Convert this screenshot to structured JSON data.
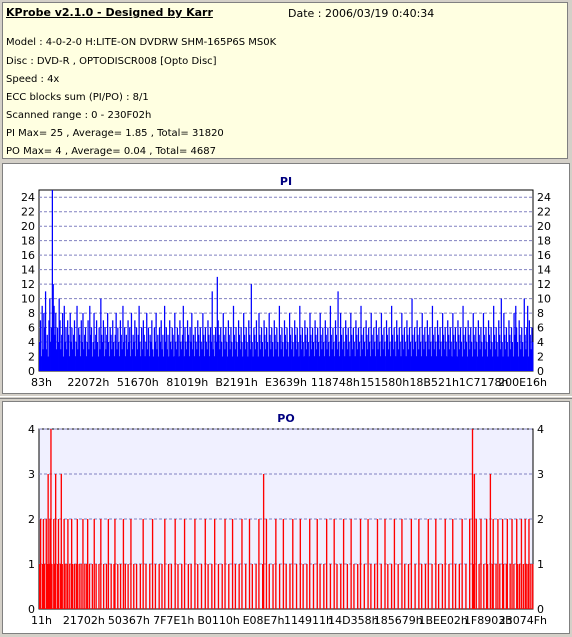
{
  "header": {
    "title": "KProbe v2.1.0 - Designed by Karr",
    "date": "Date : 2006/03/19 0:40:34",
    "lines": [
      "Model : 4-0-2-0 H:LITE-ON DVDRW SHM-165P6S MS0K",
      "Disc : DVD-R , OPTODISCR008 [Opto Disc]",
      "Speed : 4x",
      "ECC blocks sum (PI/PO) : 8/1",
      "Scanned range : 0 - 230F02h",
      "PI Max= 25 , Average= 1.85 , Total= 31820",
      "PO Max= 4 , Average= 0.04 , Total= 4687"
    ]
  },
  "chart_data": [
    {
      "type": "bar",
      "title": "PI",
      "color": "#0000ff",
      "background": "#ffffff",
      "ylim": [
        0,
        25
      ],
      "yticks": [
        0,
        2,
        4,
        6,
        8,
        10,
        12,
        14,
        16,
        18,
        20,
        22,
        24
      ],
      "grid": true,
      "x_tick_labels": [
        "83h",
        "22072h",
        "51670h",
        "81019h",
        "B2191h",
        "E3639h",
        "118748h",
        "151580h",
        "18B521h",
        "1C7178h",
        "200E16h"
      ],
      "values": [
        4,
        7,
        2,
        9,
        3,
        8,
        6,
        11,
        3,
        5,
        2,
        7,
        10,
        4,
        6,
        25,
        12,
        9,
        5,
        8,
        3,
        6,
        4,
        10,
        7,
        3,
        5,
        8,
        2,
        9,
        4,
        6,
        3,
        7,
        5,
        2,
        8,
        4,
        6,
        3,
        5,
        7,
        2,
        4,
        9,
        3,
        6,
        5,
        2,
        7,
        4,
        8,
        3,
        5,
        6,
        2,
        4,
        7,
        3,
        9,
        5,
        6,
        2,
        4,
        8,
        3,
        5,
        7,
        4,
        2,
        6,
        3,
        10,
        5,
        4,
        7,
        2,
        6,
        3,
        5,
        8,
        4,
        2,
        6,
        5,
        3,
        7,
        4,
        2,
        5,
        8,
        3,
        6,
        4,
        2,
        7,
        5,
        3,
        9,
        4,
        6,
        2,
        5,
        3,
        7,
        4,
        6,
        2,
        8,
        3,
        5,
        4,
        7,
        2,
        6,
        3,
        5,
        9,
        4,
        2,
        6,
        3,
        7,
        5,
        2,
        4,
        8,
        3,
        6,
        2,
        5,
        4,
        7,
        3,
        2,
        6,
        4,
        8,
        3,
        5,
        2,
        6,
        4,
        7,
        3,
        5,
        2,
        9,
        4,
        6,
        3,
        5,
        2,
        7,
        4,
        3,
        6,
        5,
        2,
        8,
        4,
        3,
        6,
        5,
        2,
        7,
        4,
        3,
        5,
        9,
        2,
        6,
        4,
        3,
        7,
        5,
        2,
        6,
        4,
        8,
        3,
        5,
        2,
        6,
        4,
        3,
        7,
        5,
        2,
        6,
        4,
        3,
        8,
        5,
        2,
        6,
        4,
        3,
        7,
        5,
        2,
        6,
        4,
        11,
        3,
        5,
        2,
        6,
        4,
        13,
        7,
        5,
        3,
        6,
        4,
        2,
        8,
        5,
        3,
        6,
        4,
        2,
        7,
        5,
        3,
        6,
        4,
        2,
        9,
        5,
        3,
        6,
        4,
        2,
        7,
        5,
        3,
        6,
        4,
        2,
        8,
        5,
        3,
        6,
        4,
        2,
        7,
        5,
        3,
        12,
        4,
        2,
        6,
        5,
        3,
        7,
        4,
        2,
        8,
        5,
        3,
        6,
        4,
        2,
        7,
        5,
        3,
        6,
        4,
        2,
        8,
        5,
        3,
        6,
        4,
        2,
        7,
        5,
        3,
        6,
        4,
        2,
        9,
        5,
        3,
        6,
        4,
        2,
        7,
        5,
        3,
        6,
        4,
        2,
        8,
        5,
        3,
        6,
        4,
        2,
        7,
        5,
        3,
        6,
        4,
        2,
        9,
        5,
        3,
        6,
        4,
        2,
        7,
        5,
        3,
        6,
        4,
        2,
        8,
        5,
        3,
        6,
        4,
        2,
        7,
        5,
        3,
        6,
        4,
        2,
        8,
        5,
        3,
        6,
        4,
        2,
        7,
        5,
        3,
        6,
        4,
        2,
        9,
        5,
        3,
        6,
        4,
        2,
        7,
        5,
        3,
        11,
        4,
        2,
        8,
        5,
        3,
        6,
        4,
        2,
        7,
        5,
        3,
        6,
        4,
        2,
        8,
        5,
        3,
        6,
        4,
        2,
        7,
        5,
        3,
        6,
        4,
        2,
        9,
        5,
        3,
        6,
        4,
        2,
        7,
        5,
        3,
        6,
        4,
        2,
        8,
        5,
        3,
        6,
        4,
        2,
        7,
        5,
        3,
        6,
        4,
        2,
        8,
        5,
        3,
        6,
        4,
        2,
        7,
        5,
        3,
        6,
        4,
        2,
        9,
        5,
        3,
        6,
        4,
        2,
        7,
        5,
        3,
        6,
        4,
        2,
        8,
        5,
        3,
        6,
        4,
        2,
        7,
        5,
        3,
        6,
        4,
        2,
        10,
        5,
        3,
        6,
        4,
        2,
        7,
        5,
        3,
        6,
        4,
        2,
        8,
        5,
        3,
        6,
        4,
        2,
        7,
        5,
        3,
        6,
        4,
        2,
        9,
        5,
        3,
        6,
        4,
        2,
        7,
        5,
        3,
        6,
        4,
        2,
        8,
        5,
        3,
        6,
        4,
        2,
        7,
        5,
        3,
        6,
        4,
        2,
        8,
        5,
        3,
        6,
        4,
        2,
        7,
        5,
        3,
        6,
        4,
        2,
        9,
        5,
        3,
        6,
        4,
        2,
        7,
        5,
        3,
        6,
        4,
        2,
        8,
        5,
        3,
        6,
        4,
        2,
        7,
        5,
        3,
        6,
        4,
        2,
        8,
        5,
        3,
        6,
        4,
        2,
        7,
        5,
        3,
        6,
        4,
        2,
        9,
        5,
        3,
        6,
        4,
        2,
        7,
        5,
        3,
        10,
        4,
        2,
        8,
        5,
        3,
        6,
        4,
        2,
        7,
        5,
        3,
        6,
        4,
        2,
        8,
        5,
        9,
        6,
        4,
        2,
        7,
        5,
        3,
        6,
        4,
        2,
        10,
        5,
        3,
        6,
        9,
        2,
        7,
        5,
        3,
        6,
        4
      ]
    },
    {
      "type": "bar",
      "title": "PO",
      "color": "#ff0000",
      "background": "#f0f0ff",
      "ylim": [
        0,
        4
      ],
      "yticks": [
        0,
        1,
        2,
        3,
        4
      ],
      "grid": true,
      "x_tick_labels": [
        "11h",
        "21702h",
        "50367h",
        "7F7E1h",
        "B0110h",
        "E08E7h",
        "114911h",
        "14D358h",
        "185679h",
        "1BEE02h",
        "1F8903h",
        "23074Fh"
      ],
      "values": [
        1,
        2,
        0,
        1,
        2,
        1,
        0,
        2,
        1,
        3,
        1,
        2,
        4,
        1,
        0,
        2,
        1,
        3,
        0,
        1,
        2,
        0,
        1,
        3,
        1,
        0,
        2,
        1,
        0,
        1,
        2,
        0,
        1,
        0,
        2,
        1,
        0,
        1,
        0,
        1,
        2,
        0,
        1,
        0,
        1,
        0,
        2,
        0,
        1,
        0,
        1,
        2,
        0,
        1,
        0,
        0,
        1,
        0,
        2,
        0,
        1,
        0,
        0,
        1,
        0,
        2,
        0,
        0,
        1,
        0,
        0,
        1,
        0,
        2,
        0,
        0,
        1,
        0,
        0,
        1,
        2,
        0,
        0,
        1,
        0,
        0,
        1,
        0,
        0,
        2,
        0,
        1,
        0,
        0,
        1,
        0,
        0,
        2,
        0,
        0,
        1,
        0,
        0,
        1,
        0,
        0,
        0,
        1,
        0,
        0,
        2,
        0,
        0,
        1,
        0,
        0,
        0,
        1,
        0,
        0,
        2,
        0,
        0,
        1,
        0,
        0,
        0,
        1,
        0,
        0,
        1,
        0,
        0,
        2,
        0,
        0,
        0,
        1,
        0,
        0,
        1,
        0,
        0,
        0,
        2,
        0,
        0,
        1,
        0,
        0,
        0,
        1,
        0,
        0,
        2,
        0,
        0,
        0,
        1,
        0,
        0,
        1,
        0,
        0,
        0,
        2,
        0,
        0,
        1,
        0,
        0,
        0,
        1,
        0,
        0,
        0,
        2,
        0,
        0,
        1,
        0,
        0,
        0,
        1,
        0,
        0,
        2,
        0,
        0,
        0,
        1,
        0,
        0,
        0,
        1,
        0,
        0,
        2,
        0,
        0,
        0,
        1,
        0,
        0,
        0,
        2,
        0,
        0,
        1,
        0,
        0,
        0,
        1,
        0,
        0,
        2,
        0,
        0,
        0,
        1,
        0,
        0,
        0,
        2,
        0,
        0,
        1,
        0,
        0,
        0,
        1,
        0,
        0,
        2,
        0,
        0,
        0,
        1,
        3,
        0,
        0,
        2,
        0,
        0,
        1,
        0,
        0,
        0,
        1,
        0,
        0,
        2,
        0,
        0,
        0,
        1,
        0,
        0,
        0,
        2,
        0,
        0,
        1,
        0,
        0,
        0,
        1,
        0,
        0,
        2,
        0,
        0,
        0,
        1,
        0,
        0,
        0,
        2,
        0,
        0,
        1,
        0,
        0,
        0,
        1,
        0,
        0,
        2,
        0,
        0,
        0,
        1,
        0,
        0,
        0,
        2,
        0,
        0,
        1,
        0,
        0,
        0,
        1,
        0,
        0,
        2,
        0,
        0,
        0,
        1,
        0,
        0,
        0,
        2,
        0,
        0,
        1,
        0,
        0,
        0,
        1,
        0,
        0,
        2,
        0,
        0,
        0,
        1,
        0,
        0,
        0,
        2,
        0,
        0,
        1,
        0,
        0,
        0,
        1,
        0,
        0,
        2,
        0,
        0,
        0,
        1,
        0,
        0,
        0,
        2,
        0,
        0,
        1,
        0,
        0,
        0,
        1,
        0,
        0,
        2,
        0,
        0,
        0,
        1,
        0,
        0,
        0,
        2,
        0,
        0,
        1,
        0,
        0,
        0,
        1,
        0,
        0,
        2,
        0,
        0,
        0,
        1,
        0,
        0,
        0,
        2,
        0,
        0,
        1,
        0,
        0,
        0,
        1,
        0,
        0,
        2,
        0,
        0,
        0,
        1,
        0,
        0,
        0,
        2,
        0,
        0,
        1,
        0,
        0,
        0,
        1,
        0,
        0,
        2,
        0,
        0,
        0,
        1,
        0,
        0,
        0,
        2,
        0,
        0,
        1,
        0,
        0,
        0,
        1,
        0,
        0,
        2,
        0,
        0,
        0,
        1,
        0,
        0,
        0,
        2,
        0,
        0,
        1,
        0,
        0,
        0,
        1,
        0,
        0,
        2,
        0,
        0,
        0,
        1,
        0,
        0,
        0,
        2,
        0,
        0,
        4,
        1,
        3,
        0,
        2,
        0,
        0,
        1,
        0,
        2,
        0,
        0,
        1,
        0,
        0,
        2,
        1,
        0,
        0,
        3,
        0,
        1,
        2,
        0,
        0,
        1,
        0,
        2,
        0,
        1,
        0,
        0,
        2,
        1,
        0,
        0,
        1,
        2,
        0,
        0,
        1,
        0,
        2,
        0,
        1,
        0,
        0,
        2,
        1,
        0,
        1,
        0,
        2,
        0,
        1,
        0,
        2,
        1,
        0,
        1,
        2,
        0,
        1,
        0,
        1
      ]
    }
  ]
}
